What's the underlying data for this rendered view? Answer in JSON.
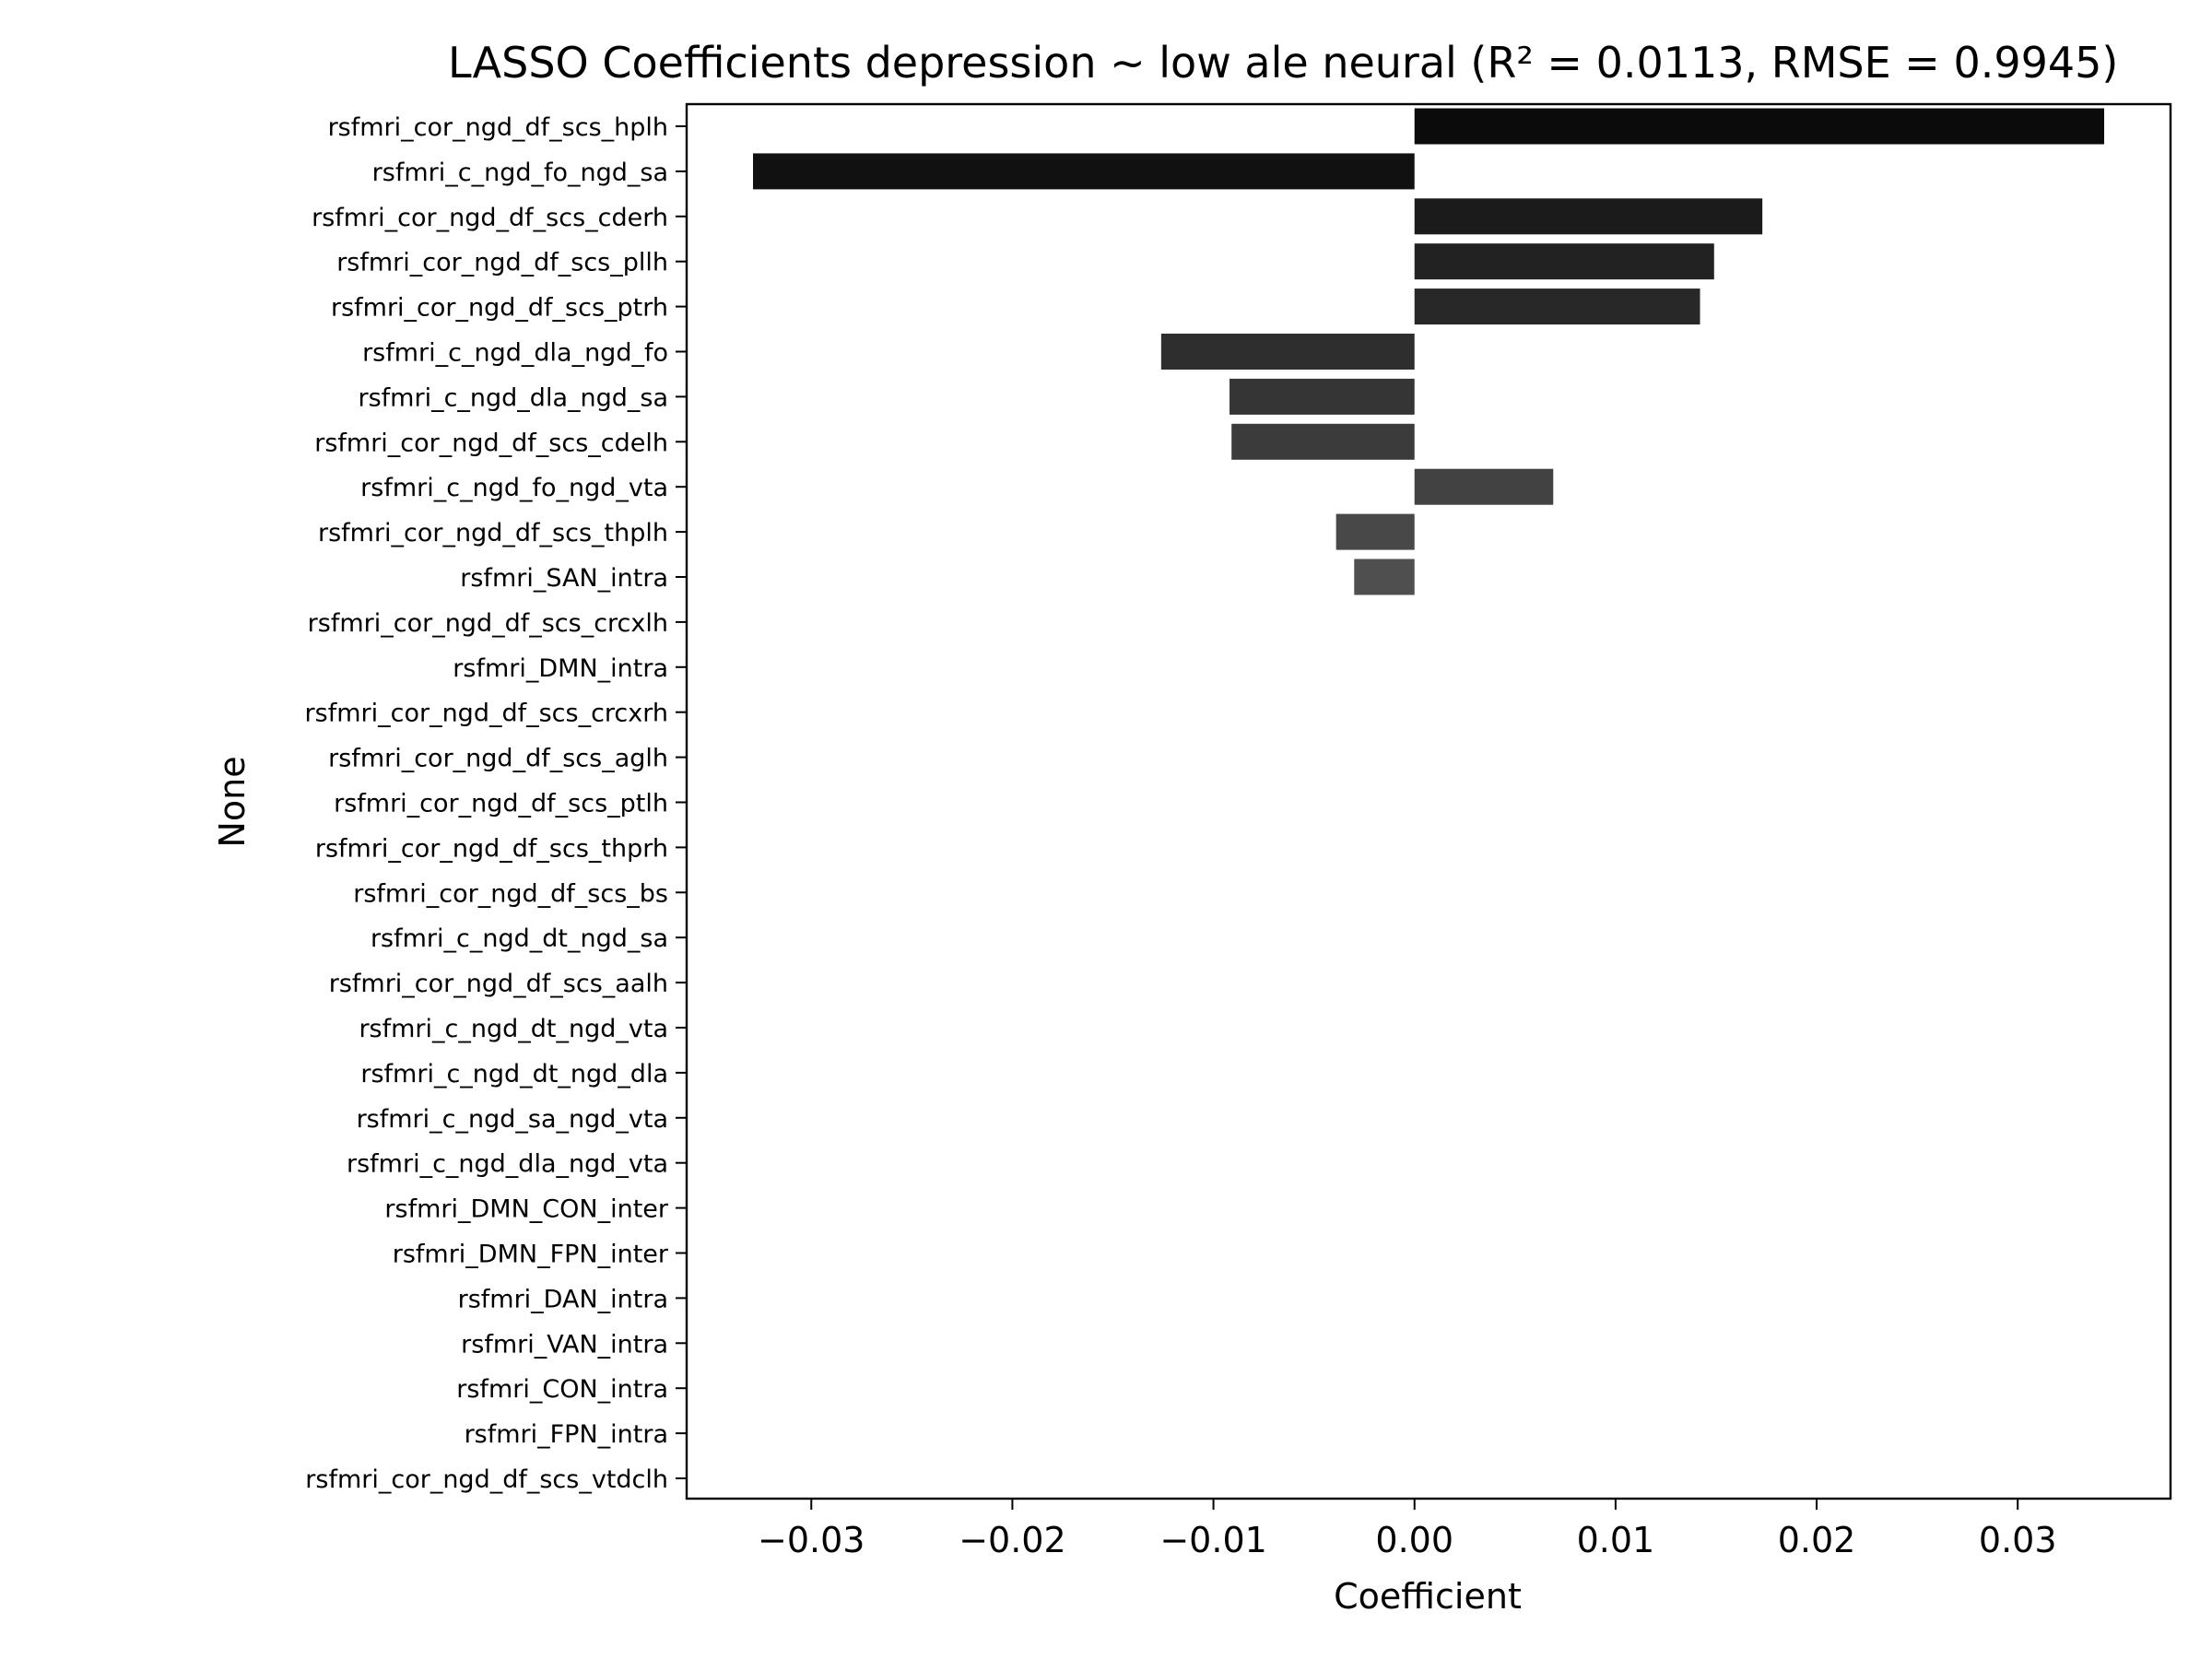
{
  "chart_data": {
    "type": "bar",
    "orientation": "horizontal",
    "title": "LASSO Coefficients depression ~ low ale neural (R² = 0.0113, RMSE = 0.9945)",
    "xlabel": "Coefficient",
    "ylabel": "None",
    "xlim": [
      -0.0362,
      0.0376
    ],
    "xticks": [
      -0.03,
      -0.02,
      -0.01,
      0.0,
      0.01,
      0.02,
      0.03
    ],
    "xtick_labels": [
      "−0.03",
      "−0.02",
      "−0.01",
      "0.00",
      "0.01",
      "0.02",
      "0.03"
    ],
    "grid": false,
    "legend": "none",
    "categories": [
      "rsfmri_cor_ngd_df_scs_hplh",
      "rsfmri_c_ngd_fo_ngd_sa",
      "rsfmri_cor_ngd_df_scs_cderh",
      "rsfmri_cor_ngd_df_scs_pllh",
      "rsfmri_cor_ngd_df_scs_ptrh",
      "rsfmri_c_ngd_dla_ngd_fo",
      "rsfmri_c_ngd_dla_ngd_sa",
      "rsfmri_cor_ngd_df_scs_cdelh",
      "rsfmri_c_ngd_fo_ngd_vta",
      "rsfmri_cor_ngd_df_scs_thplh",
      "rsfmri_SAN_intra",
      "rsfmri_cor_ngd_df_scs_crcxlh",
      "rsfmri_DMN_intra",
      "rsfmri_cor_ngd_df_scs_crcxrh",
      "rsfmri_cor_ngd_df_scs_aglh",
      "rsfmri_cor_ngd_df_scs_ptlh",
      "rsfmri_cor_ngd_df_scs_thprh",
      "rsfmri_cor_ngd_df_scs_bs",
      "rsfmri_c_ngd_dt_ngd_sa",
      "rsfmri_cor_ngd_df_scs_aalh",
      "rsfmri_c_ngd_dt_ngd_vta",
      "rsfmri_c_ngd_dt_ngd_dla",
      "rsfmri_c_ngd_sa_ngd_vta",
      "rsfmri_c_ngd_dla_ngd_vta",
      "rsfmri_DMN_CON_inter",
      "rsfmri_DMN_FPN_inter",
      "rsfmri_DAN_intra",
      "rsfmri_VAN_intra",
      "rsfmri_CON_intra",
      "rsfmri_FPN_intra",
      "rsfmri_cor_ngd_df_scs_vtdclh"
    ],
    "values": [
      0.0343,
      -0.0329,
      0.0173,
      0.0149,
      0.0142,
      -0.0126,
      -0.0092,
      -0.0091,
      0.0069,
      -0.0039,
      -0.003,
      0,
      0,
      0,
      0,
      0,
      0,
      0,
      0,
      0,
      0,
      0,
      0,
      0,
      0,
      0,
      0,
      0,
      0,
      0,
      0
    ],
    "colors": [
      "#0b0b0b",
      "#111111",
      "#1b1b1b",
      "#222222",
      "#282828",
      "#2e2e2e",
      "#353535",
      "#3b3b3b",
      "#424242",
      "#484848",
      "#4f4f4f",
      "#555555",
      "#5b5b5b",
      "#626262",
      "#686868",
      "#6e6e6e",
      "#747474",
      "#7a7a7a",
      "#808080",
      "#868686",
      "#8c8c8c",
      "#929292",
      "#989898",
      "#9e9e9e",
      "#a4a4a4",
      "#aaaaaa",
      "#b0b0b0",
      "#b6b6b6",
      "#bcbcbc",
      "#c2c2c2",
      "#c8c8c8"
    ]
  }
}
